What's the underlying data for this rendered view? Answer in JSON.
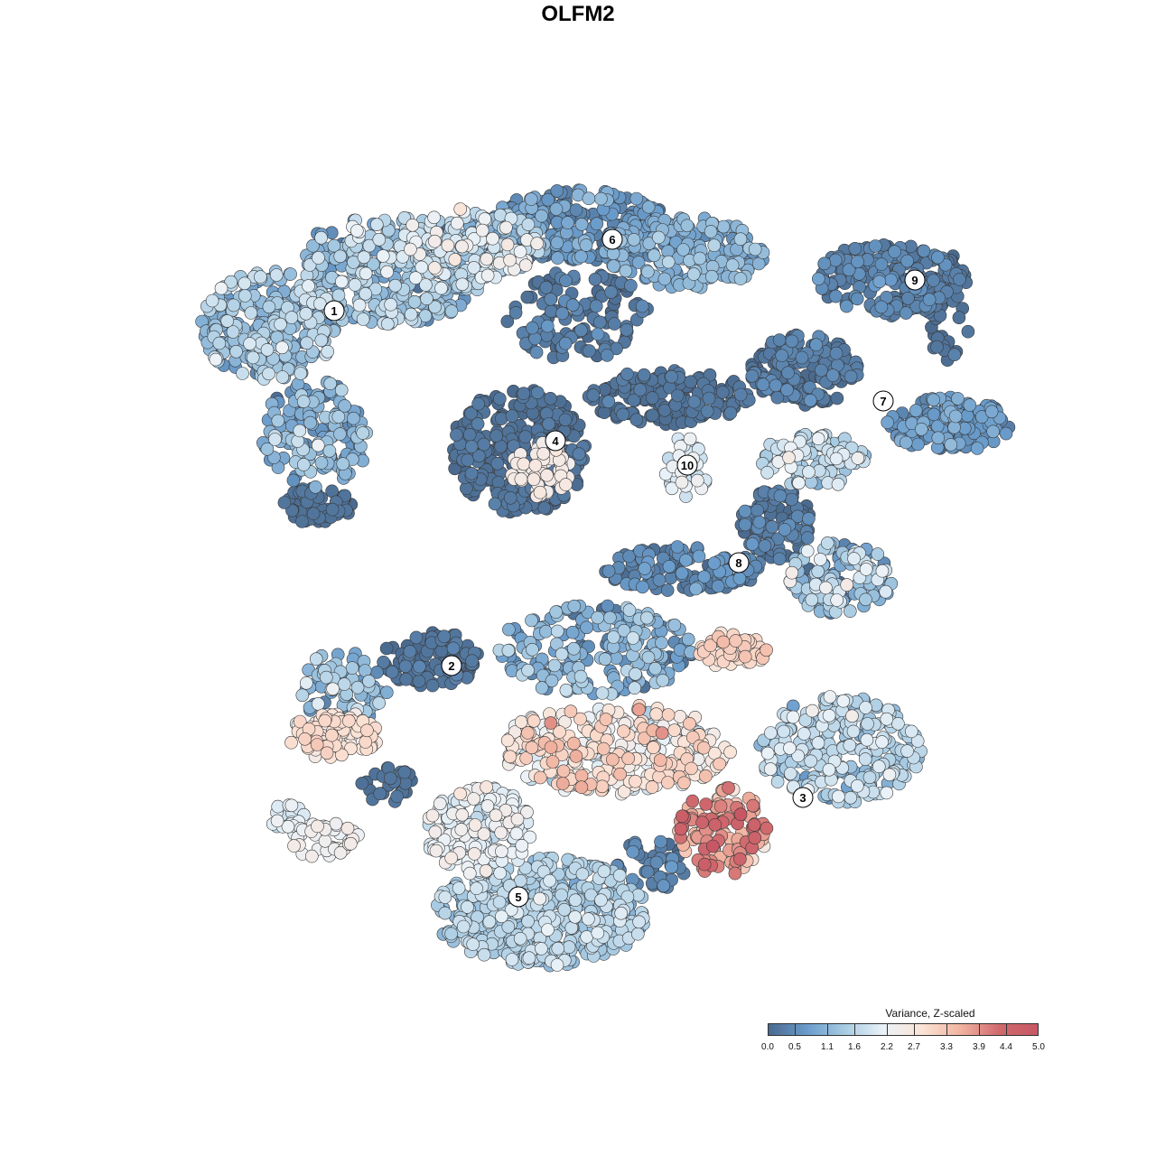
{
  "chart_data": {
    "type": "scatter",
    "title": "OLFM2",
    "xlabel": "",
    "ylabel": "",
    "grid": false,
    "legend": {
      "title": "Variance, Z-scaled",
      "placement": "bottom-right",
      "min": 0.0,
      "max": 5.0,
      "ticks": [
        "0.0",
        "0.5",
        "1.1",
        "1.6",
        "2.2",
        "2.7",
        "3.3",
        "3.9",
        "4.4",
        "5.0"
      ],
      "tick_values": [
        0.0,
        0.5,
        1.1,
        1.6,
        2.2,
        2.7,
        3.3,
        3.9,
        4.4,
        5.0
      ],
      "colors": [
        "#4a6a8f",
        "#6a9ccb",
        "#a9cce3",
        "#eaf2f8",
        "#fbe3d6",
        "#f1b3a0",
        "#d06a6e",
        "#c75764"
      ]
    },
    "clusters": [
      {
        "label": "1",
        "x": 370,
        "y": 344
      },
      {
        "label": "2",
        "x": 500,
        "y": 737
      },
      {
        "label": "3",
        "x": 889,
        "y": 883
      },
      {
        "label": "4",
        "x": 615,
        "y": 488
      },
      {
        "label": "5",
        "x": 574,
        "y": 993
      },
      {
        "label": "6",
        "x": 678,
        "y": 265
      },
      {
        "label": "7",
        "x": 978,
        "y": 444
      },
      {
        "label": "8",
        "x": 818,
        "y": 623
      },
      {
        "label": "9",
        "x": 1013,
        "y": 310
      },
      {
        "label": "10",
        "x": 761,
        "y": 515
      }
    ],
    "xlim": [
      200,
      1130
    ],
    "ylim": [
      1090,
      185
    ]
  }
}
